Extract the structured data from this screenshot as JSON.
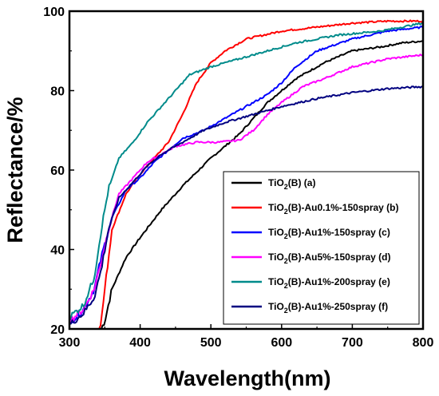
{
  "chart_data": {
    "type": "line",
    "xlabel": "Wavelength(nm)",
    "ylabel": "Reflectance/%",
    "xlim": [
      300,
      800
    ],
    "ylim": [
      20,
      100
    ],
    "xticks": [
      "300",
      "400",
      "500",
      "600",
      "700",
      "800"
    ],
    "yticks": [
      "20",
      "40",
      "60",
      "80",
      "100"
    ],
    "legend_position": "lower-right",
    "series": [
      {
        "name_main": "TiO",
        "name_sub": "2",
        "name_rest": "(B) (a)",
        "color": "#000000",
        "start": 345,
        "points": [
          [
            345,
            20
          ],
          [
            350,
            22
          ],
          [
            360,
            30
          ],
          [
            380,
            38
          ],
          [
            400,
            43
          ],
          [
            430,
            50
          ],
          [
            460,
            56
          ],
          [
            500,
            63
          ],
          [
            540,
            69
          ],
          [
            580,
            77
          ],
          [
            620,
            83
          ],
          [
            660,
            87
          ],
          [
            700,
            90
          ],
          [
            740,
            91
          ],
          [
            770,
            92
          ],
          [
            800,
            92.5
          ]
        ]
      },
      {
        "name_main": "TiO",
        "name_sub": "2",
        "name_rest": "(B)-Au0.1%-150spray (b)",
        "color": "#ff0000",
        "start": 340,
        "points": [
          [
            340,
            20
          ],
          [
            345,
            22
          ],
          [
            350,
            30
          ],
          [
            360,
            45
          ],
          [
            380,
            54
          ],
          [
            400,
            59
          ],
          [
            420,
            63
          ],
          [
            440,
            67
          ],
          [
            460,
            74
          ],
          [
            480,
            82
          ],
          [
            500,
            87
          ],
          [
            520,
            90
          ],
          [
            550,
            93
          ],
          [
            600,
            95
          ],
          [
            650,
            96
          ],
          [
            700,
            97
          ],
          [
            750,
            97.5
          ],
          [
            800,
            97.5
          ]
        ]
      },
      {
        "name_main": "TiO",
        "name_sub": "2",
        "name_rest": "(B)-Au1%-150spray (c)",
        "color": "#0000ff",
        "start": 300,
        "points": [
          [
            300,
            22
          ],
          [
            310,
            23
          ],
          [
            320,
            25
          ],
          [
            335,
            30
          ],
          [
            345,
            38
          ],
          [
            360,
            48
          ],
          [
            380,
            55
          ],
          [
            400,
            58
          ],
          [
            420,
            62
          ],
          [
            440,
            65
          ],
          [
            460,
            68
          ],
          [
            490,
            70
          ],
          [
            520,
            73
          ],
          [
            550,
            76
          ],
          [
            580,
            79
          ],
          [
            600,
            82
          ],
          [
            620,
            86
          ],
          [
            650,
            90
          ],
          [
            700,
            93
          ],
          [
            750,
            95
          ],
          [
            800,
            96
          ]
        ]
      },
      {
        "name_main": "TiO",
        "name_sub": "2",
        "name_rest": "(B)-Au5%-150spray (d)",
        "color": "#ff00ff",
        "start": 300,
        "points": [
          [
            300,
            22
          ],
          [
            320,
            25
          ],
          [
            335,
            30
          ],
          [
            345,
            37
          ],
          [
            355,
            45
          ],
          [
            370,
            54
          ],
          [
            390,
            58
          ],
          [
            410,
            62
          ],
          [
            430,
            64
          ],
          [
            450,
            66
          ],
          [
            480,
            67
          ],
          [
            510,
            67
          ],
          [
            540,
            67.5
          ],
          [
            560,
            70
          ],
          [
            580,
            74
          ],
          [
            600,
            77
          ],
          [
            630,
            81
          ],
          [
            660,
            83
          ],
          [
            700,
            86
          ],
          [
            750,
            88
          ],
          [
            800,
            89
          ]
        ]
      },
      {
        "name_main": "TiO",
        "name_sub": "2",
        "name_rest": "(B)-Au1%-200spray (e)",
        "color": "#008b8b",
        "start": 300,
        "points": [
          [
            300,
            23
          ],
          [
            320,
            26
          ],
          [
            335,
            33
          ],
          [
            345,
            45
          ],
          [
            355,
            55
          ],
          [
            370,
            63
          ],
          [
            390,
            67
          ],
          [
            410,
            72
          ],
          [
            430,
            76
          ],
          [
            450,
            80
          ],
          [
            470,
            84
          ],
          [
            500,
            86
          ],
          [
            540,
            88
          ],
          [
            580,
            90
          ],
          [
            620,
            92
          ],
          [
            680,
            94
          ],
          [
            740,
            95
          ],
          [
            800,
            97
          ]
        ]
      },
      {
        "name_main": "TiO",
        "name_sub": "2",
        "name_rest": "(B)-Au1%-250spray (f)",
        "color": "#000080",
        "start": 300,
        "points": [
          [
            300,
            21
          ],
          [
            320,
            24
          ],
          [
            335,
            28
          ],
          [
            345,
            35
          ],
          [
            355,
            45
          ],
          [
            370,
            53
          ],
          [
            390,
            57
          ],
          [
            410,
            61
          ],
          [
            430,
            64
          ],
          [
            460,
            67
          ],
          [
            490,
            70
          ],
          [
            520,
            72
          ],
          [
            560,
            74
          ],
          [
            600,
            76
          ],
          [
            650,
            78
          ],
          [
            700,
            79.5
          ],
          [
            750,
            80.5
          ],
          [
            800,
            81
          ]
        ]
      }
    ]
  }
}
